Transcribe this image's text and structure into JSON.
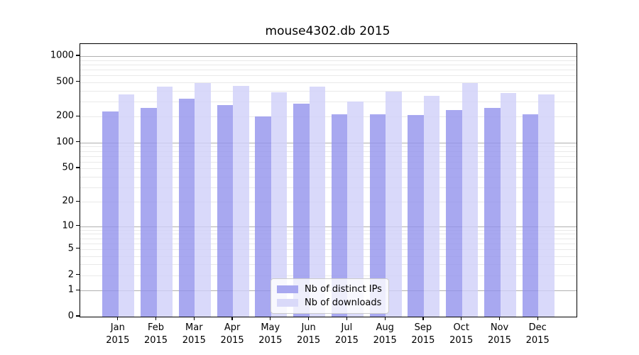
{
  "figure_title": "mouse4302.db 2015",
  "legend": {
    "items": [
      {
        "label": "Nb of distinct IPs",
        "color": "#a8a8f0"
      },
      {
        "label": "Nb of downloads",
        "color": "#d9d9f9"
      }
    ]
  },
  "chart_data": {
    "type": "bar",
    "title": "mouse4302.db 2015",
    "categories": [
      "Jan",
      "Feb",
      "Mar",
      "Apr",
      "May",
      "Jun",
      "Jul",
      "Aug",
      "Sep",
      "Oct",
      "Nov",
      "Dec"
    ],
    "category_year": "2015",
    "series": [
      {
        "name": "Nb of distinct IPs",
        "fill_color": "rgba(146,146,236,0.8)",
        "legend_color": "#a8a8f0",
        "values": [
          229,
          254,
          324,
          274,
          200,
          285,
          211,
          211,
          207,
          239,
          253,
          211
        ]
      },
      {
        "name": "Nb of downloads",
        "fill_color": "rgba(208,208,249,0.8)",
        "legend_color": "#d9d9f9",
        "values": [
          360,
          443,
          486,
          451,
          384,
          448,
          298,
          393,
          346,
          486,
          373,
          360
        ]
      }
    ],
    "xlabel": "",
    "ylabel": "",
    "y_scale": "log10(1+y)",
    "y_ticks": [
      0,
      1,
      2,
      5,
      10,
      20,
      50,
      100,
      200,
      500,
      1000
    ],
    "y_minor_gridlines_per_decade": [
      2,
      3,
      4,
      5,
      6,
      7,
      8,
      9
    ],
    "y_major_gridlines": [
      1,
      10,
      100,
      1000
    ],
    "ylim": [
      0,
      1378
    ],
    "grid": true,
    "grid_major_color": "#b0b0b0",
    "grid_minor_color": "#e9e9e9",
    "legend_position": "lower center"
  }
}
